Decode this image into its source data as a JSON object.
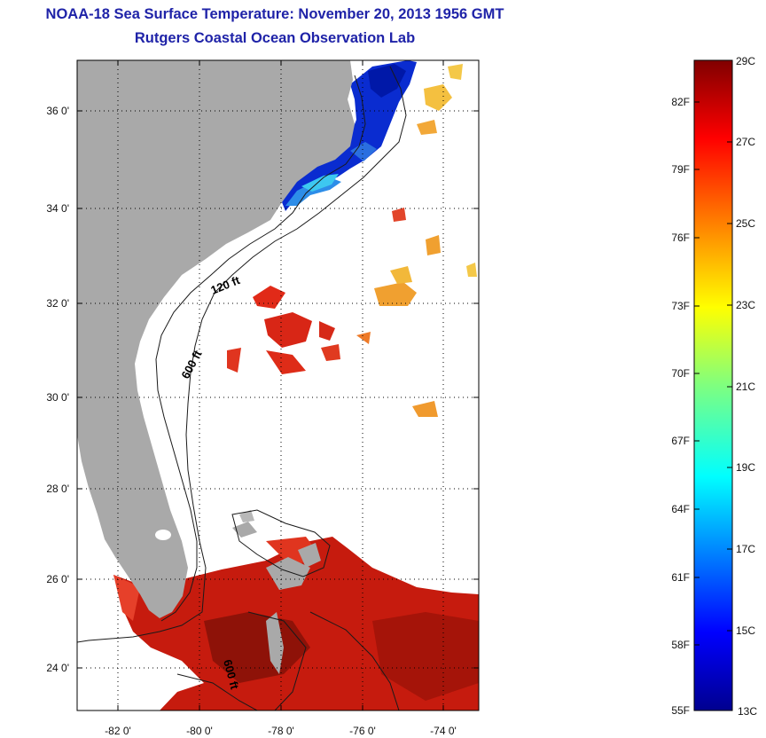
{
  "header": {
    "title": "NOAA-18 Sea Surface Temperature:  November 20, 2013 1956 GMT",
    "subtitle": "Rutgers Coastal Ocean Observation Lab"
  },
  "map": {
    "lon_range": [
      -83,
      -73
    ],
    "lat_range": [
      23,
      37
    ],
    "x_ticks": [
      "-82 0'",
      "-80 0'",
      "-78 0'",
      "-76 0'",
      "-74 0'"
    ],
    "y_ticks": [
      "36 0'",
      "34 0'",
      "32 0'",
      "30 0'",
      "28 0'",
      "26 0'",
      "24 0'"
    ],
    "grid": "dotted",
    "land_color": "#a9a9a9",
    "no_data_color": "#ffffff",
    "contours": [
      "120 ft",
      "600 ft",
      "600 ft"
    ]
  },
  "colorbar": {
    "fahrenheit_labels": [
      "82F",
      "79F",
      "76F",
      "73F",
      "70F",
      "67F",
      "64F",
      "61F",
      "58F",
      "55F"
    ],
    "celsius_labels": [
      "29C",
      "27C",
      "25C",
      "23C",
      "21C",
      "19C",
      "17C",
      "15C",
      "13C"
    ],
    "range_c": [
      13,
      29
    ],
    "colormap": "jet"
  }
}
